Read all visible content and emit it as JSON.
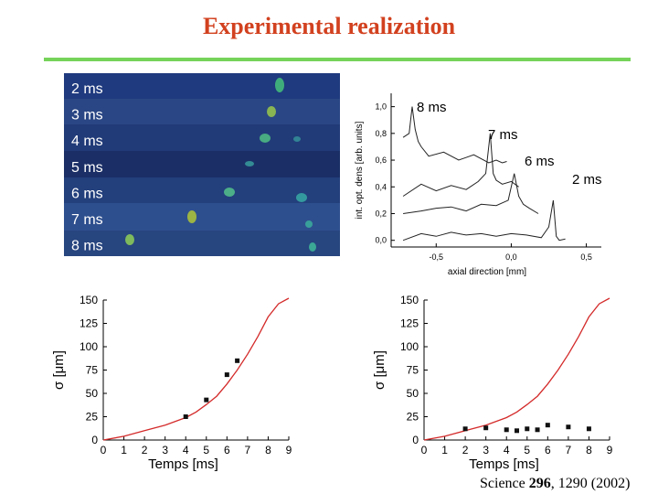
{
  "slide": {
    "title": "Experimental realization",
    "citation": {
      "prefix": "Science ",
      "volume": "296",
      "suffix": ", 1290 (2002)"
    }
  },
  "absorption_images": {
    "row_labels": [
      "2 ms",
      "3 ms",
      "4 ms",
      "5 ms",
      "6 ms",
      "7 ms",
      "8 ms"
    ]
  },
  "colors": {
    "title": "#d2411f",
    "rule": "#76d35a",
    "curve": "#d42a2a",
    "image_bg": "#243c78"
  },
  "chart_data": [
    {
      "type": "line",
      "xlabel": "axial direction [mm]",
      "ylabel": "int. opt. dens [arb. units]",
      "xlim": [
        -0.8,
        0.6
      ],
      "ylim": [
        -0.05,
        1.1
      ],
      "xticks": [
        "-0,5",
        "0,0",
        "0,5"
      ],
      "xtick_values": [
        -0.5,
        0.0,
        0.5
      ],
      "yticks": [
        "0,0",
        "0,2",
        "0,4",
        "0,6",
        "0,8",
        "1,0"
      ],
      "ytick_values": [
        0.0,
        0.2,
        0.4,
        0.6,
        0.8,
        1.0
      ],
      "annotations": [
        "8 ms",
        "7 ms",
        "6 ms",
        "2 ms"
      ],
      "series": [
        {
          "name": "8 ms",
          "x": [
            -0.72,
            -0.68,
            -0.66,
            -0.64,
            -0.62,
            -0.6,
            -0.55,
            -0.45,
            -0.35,
            -0.25,
            -0.15,
            -0.1,
            -0.06,
            -0.03
          ],
          "y": [
            0.77,
            0.8,
            1.0,
            0.83,
            0.74,
            0.7,
            0.63,
            0.66,
            0.6,
            0.64,
            0.58,
            0.6,
            0.58,
            0.59
          ]
        },
        {
          "name": "7 ms",
          "x": [
            -0.72,
            -0.6,
            -0.5,
            -0.4,
            -0.3,
            -0.22,
            -0.17,
            -0.14,
            -0.12,
            -0.1,
            -0.06,
            0.0,
            0.05
          ],
          "y": [
            0.33,
            0.42,
            0.37,
            0.41,
            0.38,
            0.44,
            0.5,
            0.8,
            0.5,
            0.45,
            0.42,
            0.44,
            0.4
          ]
        },
        {
          "name": "6 ms",
          "x": [
            -0.72,
            -0.6,
            -0.5,
            -0.4,
            -0.3,
            -0.2,
            -0.1,
            -0.02,
            0.02,
            0.05,
            0.08,
            0.12,
            0.18
          ],
          "y": [
            0.2,
            0.22,
            0.24,
            0.25,
            0.22,
            0.27,
            0.26,
            0.3,
            0.5,
            0.33,
            0.27,
            0.24,
            0.2
          ]
        },
        {
          "name": "2 ms",
          "x": [
            -0.72,
            -0.6,
            -0.5,
            -0.4,
            -0.3,
            -0.2,
            -0.1,
            0.0,
            0.1,
            0.2,
            0.25,
            0.28,
            0.3,
            0.32,
            0.36
          ],
          "y": [
            0.0,
            0.05,
            0.03,
            0.06,
            0.04,
            0.05,
            0.03,
            0.05,
            0.04,
            0.02,
            0.1,
            0.3,
            0.03,
            0.0,
            0.01
          ]
        }
      ]
    },
    {
      "type": "scatter",
      "xlabel": "Temps [ms]",
      "ylabel": "σ [μm]",
      "xlim": [
        0,
        9
      ],
      "ylim": [
        0,
        150
      ],
      "xticks": [
        "0",
        "1",
        "2",
        "3",
        "4",
        "5",
        "6",
        "7",
        "8",
        "9"
      ],
      "xtick_values": [
        0,
        1,
        2,
        3,
        4,
        5,
        6,
        7,
        8,
        9
      ],
      "yticks": [
        "0",
        "25",
        "50",
        "75",
        "100",
        "125",
        "150"
      ],
      "ytick_values": [
        0,
        25,
        50,
        75,
        100,
        125,
        150
      ],
      "series": [
        {
          "kind": "curve",
          "x": [
            0,
            1,
            2,
            3,
            4,
            4.5,
            5,
            5.5,
            6,
            6.5,
            7,
            7.5,
            8,
            8.5,
            9
          ],
          "y": [
            0,
            4,
            10,
            16,
            24,
            30,
            38,
            47,
            60,
            75,
            92,
            111,
            132,
            146,
            152
          ]
        },
        {
          "kind": "points",
          "x": [
            4,
            5,
            6,
            6.5
          ],
          "y": [
            25,
            43,
            70,
            85
          ]
        }
      ]
    },
    {
      "type": "scatter",
      "xlabel": "Temps [ms]",
      "ylabel": "σ [μm]",
      "xlim": [
        0,
        9
      ],
      "ylim": [
        0,
        150
      ],
      "xticks": [
        "0",
        "1",
        "2",
        "3",
        "4",
        "5",
        "6",
        "7",
        "8",
        "9"
      ],
      "xtick_values": [
        0,
        1,
        2,
        3,
        4,
        5,
        6,
        7,
        8,
        9
      ],
      "yticks": [
        "0",
        "25",
        "50",
        "75",
        "100",
        "125",
        "150"
      ],
      "ytick_values": [
        0,
        25,
        50,
        75,
        100,
        125,
        150
      ],
      "series": [
        {
          "kind": "curve",
          "x": [
            0,
            1,
            2,
            3,
            4,
            4.5,
            5,
            5.5,
            6,
            6.5,
            7,
            7.5,
            8,
            8.5,
            9
          ],
          "y": [
            0,
            4,
            10,
            16,
            24,
            30,
            38,
            47,
            60,
            75,
            92,
            111,
            132,
            146,
            152
          ]
        },
        {
          "kind": "points",
          "x": [
            2,
            3,
            4,
            4.5,
            5,
            5.5,
            6,
            7,
            8
          ],
          "y": [
            12,
            13,
            11,
            10,
            12,
            11,
            16,
            14,
            12
          ]
        }
      ]
    }
  ]
}
